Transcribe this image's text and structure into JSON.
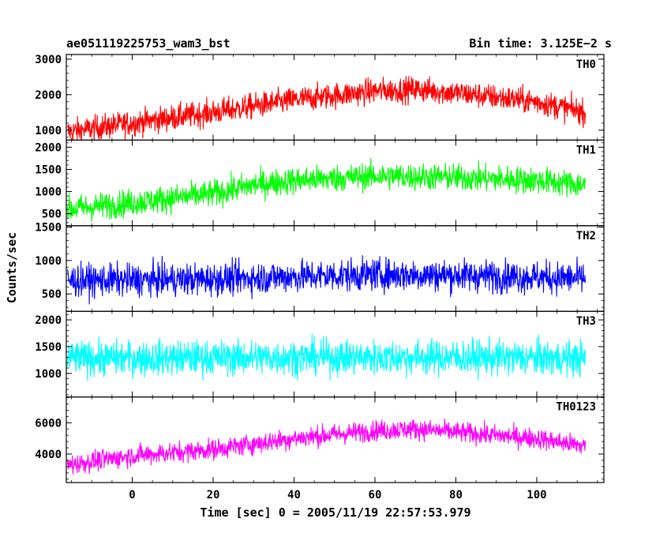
{
  "chart_data": {
    "type": "line",
    "title_left": "ae051119225753_wam3_bst",
    "title_right": "Bin time: 3.125E−2 s",
    "xlabel": "Time [sec] 0 = 2005/11/19 22:57:53.979",
    "ylabel": "Counts/sec",
    "xlim": [
      -16.3,
      116.6
    ],
    "data_range": [
      -16,
      112
    ],
    "bin_time": 0.03125,
    "x_ticks": [
      0,
      20,
      40,
      60,
      80,
      100
    ],
    "x_tick_labels": [
      "0",
      "20",
      "40",
      "60",
      "80",
      "100"
    ],
    "grid": false,
    "panels": [
      {
        "name": "TH0",
        "color": "#ff0000",
        "ylim": [
          720,
          3130
        ],
        "y_ticks": [
          1000,
          2000,
          3000
        ],
        "y_tick_labels": [
          "1000",
          "2000",
          "3000"
        ],
        "trend": [
          [
            -16,
            950
          ],
          [
            0,
            1200
          ],
          [
            20,
            1500
          ],
          [
            40,
            1850
          ],
          [
            60,
            2100
          ],
          [
            70,
            2150
          ],
          [
            80,
            2050
          ],
          [
            100,
            1800
          ],
          [
            112,
            1500
          ]
        ],
        "noise": 330
      },
      {
        "name": "TH1",
        "color": "#00ff00",
        "ylim": [
          230,
          2160
        ],
        "y_ticks": [
          500,
          1000,
          1500,
          2000
        ],
        "y_tick_labels": [
          "500",
          "1000",
          "1500",
          "2000"
        ],
        "trend": [
          [
            -16,
            600
          ],
          [
            0,
            750
          ],
          [
            20,
            950
          ],
          [
            30,
            1150
          ],
          [
            40,
            1250
          ],
          [
            60,
            1350
          ],
          [
            80,
            1320
          ],
          [
            100,
            1250
          ],
          [
            112,
            1150
          ]
        ],
        "noise": 280
      },
      {
        "name": "TH2",
        "color": "#0000ff",
        "ylim": [
          240,
          1520
        ],
        "y_ticks": [
          500,
          1000,
          1500
        ],
        "y_tick_labels": [
          "500",
          "1000",
          "1500"
        ],
        "trend": [
          [
            -16,
            700
          ],
          [
            20,
            720
          ],
          [
            40,
            760
          ],
          [
            60,
            790
          ],
          [
            80,
            780
          ],
          [
            112,
            730
          ]
        ],
        "noise": 220
      },
      {
        "name": "TH3",
        "color": "#00ffff",
        "ylim": [
          560,
          2160
        ],
        "y_ticks": [
          1000,
          1500,
          2000
        ],
        "y_tick_labels": [
          "1000",
          "1500",
          "2000"
        ],
        "trend": [
          [
            -16,
            1280
          ],
          [
            40,
            1300
          ],
          [
            80,
            1300
          ],
          [
            112,
            1280
          ]
        ],
        "noise": 300
      },
      {
        "name": "TH0123",
        "color": "#ff00ff",
        "ylim": [
          2180,
          7650
        ],
        "y_ticks": [
          4000,
          6000
        ],
        "y_tick_labels": [
          "4000",
          "6000"
        ],
        "trend": [
          [
            -16,
            3300
          ],
          [
            0,
            3900
          ],
          [
            20,
            4300
          ],
          [
            40,
            5000
          ],
          [
            60,
            5500
          ],
          [
            70,
            5600
          ],
          [
            80,
            5400
          ],
          [
            100,
            5000
          ],
          [
            112,
            4500
          ]
        ],
        "noise": 600
      }
    ]
  }
}
